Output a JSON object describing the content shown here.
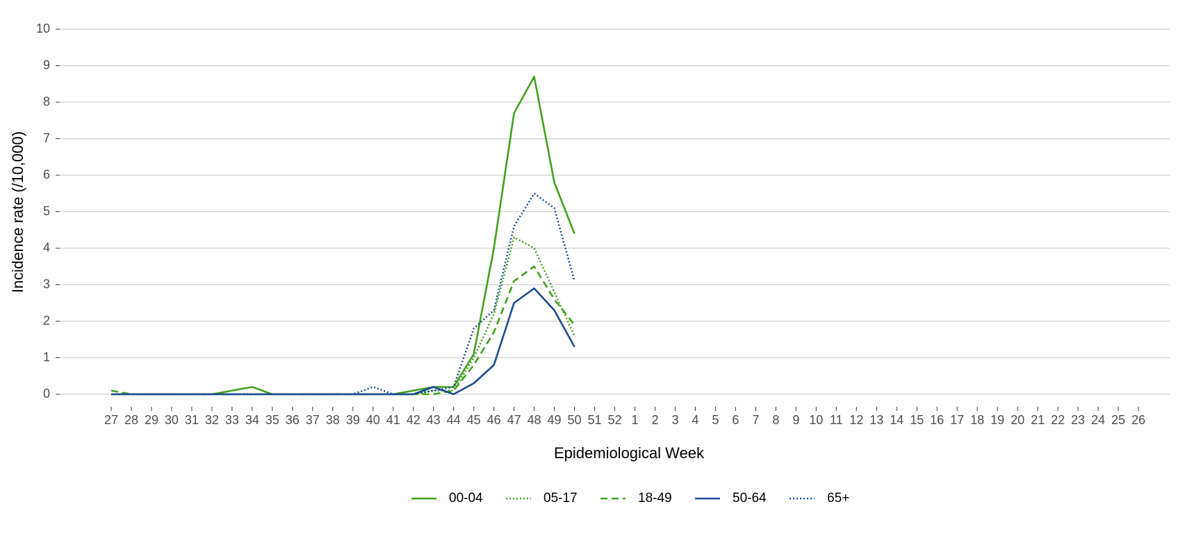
{
  "chart_data": {
    "type": "line",
    "x_label": "Epidemiological Week",
    "y_label": "Incidence rate (/10,000)",
    "categories": [
      "27",
      "28",
      "29",
      "30",
      "31",
      "32",
      "33",
      "34",
      "35",
      "36",
      "37",
      "38",
      "39",
      "40",
      "41",
      "42",
      "43",
      "44",
      "45",
      "46",
      "47",
      "48",
      "49",
      "50",
      "51",
      "52",
      "1",
      "2",
      "3",
      "4",
      "5",
      "6",
      "7",
      "8",
      "9",
      "10",
      "11",
      "12",
      "13",
      "14",
      "15",
      "16",
      "17",
      "18",
      "19",
      "20",
      "21",
      "22",
      "23",
      "24",
      "25",
      "26"
    ],
    "ylim": [
      0,
      10
    ],
    "yticks": [
      0,
      1,
      2,
      3,
      4,
      5,
      6,
      7,
      8,
      9,
      10
    ],
    "grid": true,
    "legend": "bottom",
    "series": [
      {
        "name": "00-04",
        "color": "#41a11d",
        "dash": "solid",
        "values": [
          0,
          0,
          0,
          0,
          0,
          0,
          0.1,
          0.2,
          0,
          0,
          0,
          0,
          0,
          0,
          0,
          0.1,
          0.2,
          0.2,
          1.1,
          4.0,
          7.7,
          8.7,
          5.8,
          4.4,
          null,
          null,
          null,
          null,
          null,
          null,
          null,
          null,
          null,
          null,
          null,
          null,
          null,
          null,
          null,
          null,
          null,
          null,
          null,
          null,
          null,
          null,
          null,
          null,
          null,
          null,
          null,
          null
        ]
      },
      {
        "name": "05-17",
        "color": "#41a11d",
        "dash": "dotted",
        "values": [
          0,
          0,
          0,
          0,
          0,
          0,
          0,
          0,
          0,
          0,
          0,
          0,
          0,
          0,
          0,
          0,
          0.1,
          0.1,
          1.0,
          2.2,
          4.3,
          4.0,
          2.8,
          1.6,
          null,
          null,
          null,
          null,
          null,
          null,
          null,
          null,
          null,
          null,
          null,
          null,
          null,
          null,
          null,
          null,
          null,
          null,
          null,
          null,
          null,
          null,
          null,
          null,
          null,
          null,
          null,
          null
        ]
      },
      {
        "name": "18-49",
        "color": "#41a11d",
        "dash": "dashed",
        "values": [
          0.1,
          0,
          0,
          0,
          0,
          0,
          0,
          0,
          0,
          0,
          0,
          0,
          0,
          0,
          0,
          0,
          0,
          0.1,
          0.8,
          1.7,
          3.1,
          3.5,
          2.6,
          1.9,
          null,
          null,
          null,
          null,
          null,
          null,
          null,
          null,
          null,
          null,
          null,
          null,
          null,
          null,
          null,
          null,
          null,
          null,
          null,
          null,
          null,
          null,
          null,
          null,
          null,
          null,
          null,
          null
        ]
      },
      {
        "name": "50-64",
        "color": "#1c4b92",
        "dash": "solid",
        "values": [
          0,
          0,
          0,
          0,
          0,
          0,
          0,
          0,
          0,
          0,
          0,
          0,
          0,
          0,
          0,
          0,
          0.2,
          0,
          0.3,
          0.8,
          2.5,
          2.9,
          2.3,
          1.3,
          null,
          null,
          null,
          null,
          null,
          null,
          null,
          null,
          null,
          null,
          null,
          null,
          null,
          null,
          null,
          null,
          null,
          null,
          null,
          null,
          null,
          null,
          null,
          null,
          null,
          null,
          null,
          null
        ]
      },
      {
        "name": "65+",
        "color": "#1c4b92",
        "dash": "dotted",
        "values": [
          0,
          0,
          0,
          0,
          0,
          0,
          0,
          0,
          0,
          0,
          0,
          0,
          0,
          0.2,
          0,
          0,
          0.1,
          0.2,
          1.8,
          2.3,
          4.6,
          5.5,
          5.1,
          3.1,
          null,
          null,
          null,
          null,
          null,
          null,
          null,
          null,
          null,
          null,
          null,
          null,
          null,
          null,
          null,
          null,
          null,
          null,
          null,
          null,
          null,
          null,
          null,
          null,
          null,
          null,
          null,
          null
        ]
      }
    ]
  }
}
